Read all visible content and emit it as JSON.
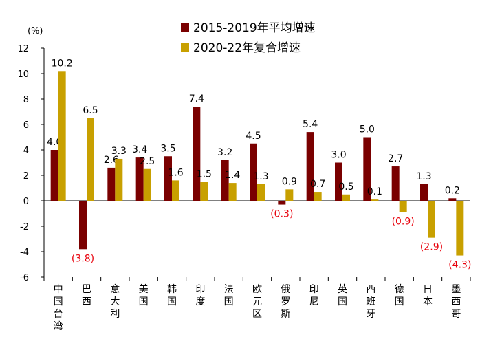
{
  "chart_data": {
    "type": "bar",
    "unit_label": "(%)",
    "categories": [
      "中国台湾",
      "巴西",
      "意大利",
      "美国",
      "韩国",
      "印度",
      "法国",
      "欧元区",
      "俄罗斯",
      "印尼",
      "英国",
      "西班牙",
      "德国",
      "日本",
      "墨西哥"
    ],
    "series": [
      {
        "name": "2015-2019年平均增速",
        "color": "#7a0000",
        "values": [
          4.0,
          -3.8,
          2.6,
          3.4,
          3.5,
          7.4,
          3.2,
          4.5,
          -0.3,
          5.4,
          3.0,
          5.0,
          2.7,
          1.3,
          0.2
        ],
        "labels": [
          "4.0",
          "(3.8)",
          "2.6",
          "3.4",
          "3.5",
          "7.4",
          "3.2",
          "4.5",
          "(0.3)",
          "5.4",
          "3.0",
          "5.0",
          "2.7",
          "1.3",
          "0.2"
        ]
      },
      {
        "name": "2020-22年复合增速",
        "color": "#c8a000",
        "values": [
          10.2,
          6.5,
          3.3,
          2.5,
          1.6,
          1.5,
          1.4,
          1.3,
          0.9,
          0.7,
          0.5,
          0.1,
          -0.9,
          -2.9,
          -4.3
        ],
        "labels": [
          "10.2",
          "6.5",
          "3.3",
          "2.5",
          "1.6",
          "1.5",
          "1.4",
          "1.3",
          "0.9",
          "0.7",
          "0.5",
          "0.1",
          "(0.9)",
          "(2.9)",
          "(4.3)"
        ]
      }
    ],
    "ylim": [
      -6,
      12
    ],
    "yticks": [
      -6,
      -4,
      -2,
      0,
      2,
      4,
      6,
      8,
      10,
      12
    ],
    "negative_label_color": "#e8000b",
    "legend": "top-center",
    "grid": false
  }
}
